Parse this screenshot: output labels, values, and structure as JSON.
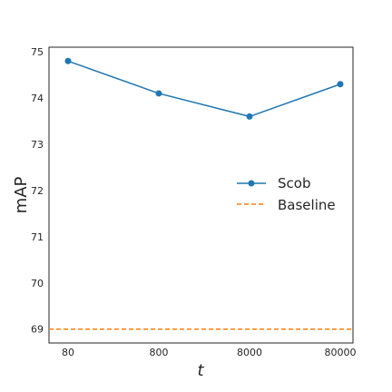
{
  "chart_data": {
    "type": "line",
    "title": "",
    "xlabel": "t",
    "ylabel": "mAP",
    "x_categories": [
      "80",
      "800",
      "8000",
      "80000"
    ],
    "x_scale": "log",
    "ylim": [
      68.7,
      75.1
    ],
    "y_ticks": [
      "69",
      "70",
      "71",
      "72",
      "73",
      "74",
      "75"
    ],
    "grid": false,
    "legend_position": "center-right",
    "series": [
      {
        "name": "Scob",
        "style": "solid-with-circle-markers",
        "color": "#1f77b4",
        "values": [
          74.8,
          74.1,
          73.6,
          74.3
        ]
      },
      {
        "name": "Baseline",
        "style": "dashed",
        "color": "#ff7f0e",
        "constant": 69.0
      }
    ]
  }
}
